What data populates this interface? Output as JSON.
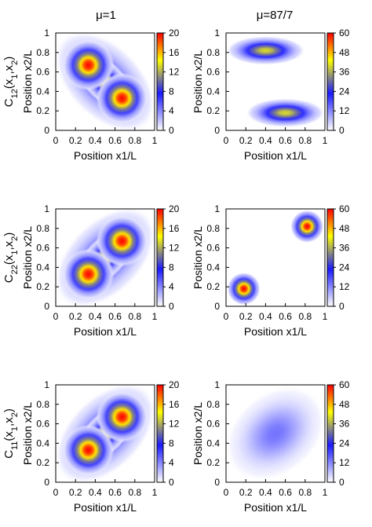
{
  "column_titles": [
    "μ=1",
    "μ=87/7"
  ],
  "row_labels": [
    {
      "base": "C",
      "sub": "12",
      "args": "(x",
      "argsub": "1",
      "comma": ",x",
      "argsub2": "2",
      "close": ")"
    },
    {
      "base": "C",
      "sub": "22",
      "args": "(x",
      "argsub": "1",
      "comma": ",x",
      "argsub2": "2",
      "close": ")"
    },
    {
      "base": "C",
      "sub": "11",
      "args": "(x",
      "argsub": "1",
      "comma": ",x",
      "argsub2": "2",
      "close": ")"
    }
  ],
  "colors": {
    "palette_stops": [
      "#ffffff",
      "#1a1aff",
      "#ffff00",
      "#ff0000"
    ],
    "frame": "#000000"
  },
  "chart_data": [
    {
      "type": "heatmap",
      "row": 0,
      "col": 0,
      "xlabel": "Position x1/L",
      "ylabel": "Position x2/L",
      "xlim": [
        0,
        1
      ],
      "ylim": [
        0,
        1
      ],
      "xticks": [
        "0",
        "0.2",
        "0.4",
        "0.6",
        "0.8",
        "1"
      ],
      "yticks": [
        "0",
        "0.2",
        "0.4",
        "0.6",
        "0.8",
        "1"
      ],
      "colorbar": {
        "range": [
          0,
          20
        ],
        "ticks": [
          "0",
          "4",
          "8",
          "12",
          "16",
          "20"
        ]
      },
      "peaks": [
        {
          "x": 0.33,
          "y": 0.67,
          "value": 20
        },
        {
          "x": 0.67,
          "y": 0.33,
          "value": 20
        }
      ],
      "shape": "anti-diagonal double lobe"
    },
    {
      "type": "heatmap",
      "row": 0,
      "col": 1,
      "xlabel": "Position x1/L",
      "ylabel": "Position x2/L",
      "xlim": [
        0,
        1
      ],
      "ylim": [
        0,
        1
      ],
      "xticks": [
        "0",
        "0.2",
        "0.4",
        "0.6",
        "0.8",
        "1"
      ],
      "yticks": [
        "0",
        "0.2",
        "0.4",
        "0.6",
        "0.8",
        "1"
      ],
      "colorbar": {
        "range": [
          0,
          60
        ],
        "ticks": [
          "0",
          "12",
          "24",
          "36",
          "48",
          "60"
        ]
      },
      "peaks": [
        {
          "x": 0.4,
          "y": 0.82,
          "value": 40
        },
        {
          "x": 0.6,
          "y": 0.18,
          "value": 40
        }
      ],
      "shape": "two horizontal ellipses"
    },
    {
      "type": "heatmap",
      "row": 1,
      "col": 0,
      "xlabel": "Position x1/L",
      "ylabel": "Position x2/L",
      "xlim": [
        0,
        1
      ],
      "ylim": [
        0,
        1
      ],
      "xticks": [
        "0",
        "0.2",
        "0.4",
        "0.6",
        "0.8",
        "1"
      ],
      "yticks": [
        "0",
        "0.2",
        "0.4",
        "0.6",
        "0.8",
        "1"
      ],
      "colorbar": {
        "range": [
          0,
          20
        ],
        "ticks": [
          "0",
          "4",
          "8",
          "12",
          "16",
          "20"
        ]
      },
      "peaks": [
        {
          "x": 0.33,
          "y": 0.33,
          "value": 20
        },
        {
          "x": 0.67,
          "y": 0.67,
          "value": 20
        }
      ],
      "shape": "diagonal double lobe"
    },
    {
      "type": "heatmap",
      "row": 1,
      "col": 1,
      "xlabel": "Position x1/L",
      "ylabel": "Position x2/L",
      "xlim": [
        0,
        1
      ],
      "ylim": [
        0,
        1
      ],
      "xticks": [
        "0",
        "0.2",
        "0.4",
        "0.6",
        "0.8",
        "1"
      ],
      "yticks": [
        "0",
        "0.2",
        "0.4",
        "0.6",
        "0.8",
        "1"
      ],
      "colorbar": {
        "range": [
          0,
          60
        ],
        "ticks": [
          "0",
          "12",
          "24",
          "36",
          "48",
          "60"
        ]
      },
      "peaks": [
        {
          "x": 0.18,
          "y": 0.18,
          "value": 60
        },
        {
          "x": 0.82,
          "y": 0.82,
          "value": 60
        }
      ],
      "shape": "two circular spots"
    },
    {
      "type": "heatmap",
      "row": 2,
      "col": 0,
      "xlabel": "Position x1/L",
      "ylabel": "Position x2/L",
      "xlim": [
        0,
        1
      ],
      "ylim": [
        0,
        1
      ],
      "xticks": [
        "0",
        "0.2",
        "0.4",
        "0.6",
        "0.8",
        "1"
      ],
      "yticks": [
        "0",
        "0.2",
        "0.4",
        "0.6",
        "0.8",
        "1"
      ],
      "colorbar": {
        "range": [
          0,
          20
        ],
        "ticks": [
          "0",
          "4",
          "8",
          "12",
          "16",
          "20"
        ]
      },
      "peaks": [
        {
          "x": 0.33,
          "y": 0.33,
          "value": 20
        },
        {
          "x": 0.67,
          "y": 0.67,
          "value": 20
        }
      ],
      "shape": "diagonal double lobe"
    },
    {
      "type": "heatmap",
      "row": 2,
      "col": 1,
      "xlabel": "Position x1/L",
      "ylabel": "Position x2/L",
      "xlim": [
        0,
        1
      ],
      "ylim": [
        0,
        1
      ],
      "xticks": [
        "0",
        "0.2",
        "0.4",
        "0.6",
        "0.8",
        "1"
      ],
      "yticks": [
        "0",
        "0.2",
        "0.4",
        "0.6",
        "0.8",
        "1"
      ],
      "colorbar": {
        "range": [
          0,
          60
        ],
        "ticks": [
          "0",
          "12",
          "24",
          "36",
          "48",
          "60"
        ]
      },
      "peaks": [
        {
          "x": 0.5,
          "y": 0.5,
          "value": 14
        }
      ],
      "shape": "broad diagonal ellipse with faint center dip"
    }
  ]
}
